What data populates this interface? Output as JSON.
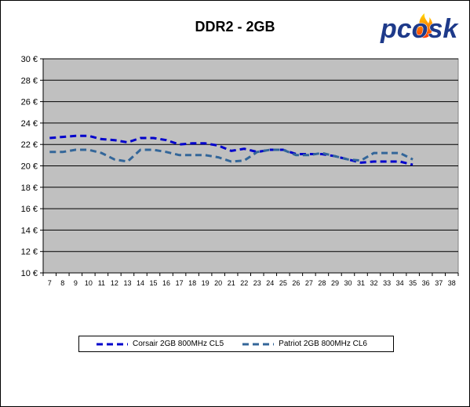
{
  "chart_data": {
    "type": "line",
    "title": "DDR2 - 2GB",
    "xlabel": "",
    "ylabel": "",
    "x": [
      7,
      8,
      9,
      10,
      11,
      12,
      13,
      14,
      15,
      16,
      17,
      18,
      19,
      20,
      21,
      22,
      23,
      24,
      25,
      26,
      27,
      28,
      29,
      30,
      31,
      32,
      33,
      34,
      35,
      36,
      37,
      38
    ],
    "ylim": [
      10,
      30
    ],
    "yticks": [
      10,
      12,
      14,
      16,
      18,
      20,
      22,
      24,
      26,
      28,
      30
    ],
    "ytick_labels": [
      "10 €",
      "12 €",
      "14 €",
      "16 €",
      "18 €",
      "20 €",
      "22 €",
      "24 €",
      "26 €",
      "28 €",
      "30 €"
    ],
    "grid": true,
    "plot_background": "#c0c0c0",
    "legend_position": "bottom",
    "series": [
      {
        "name": "Corsair 2GB 800MHz CL5",
        "color": "#0000cc",
        "values": [
          22.6,
          22.7,
          22.8,
          22.8,
          22.5,
          22.4,
          22.2,
          22.6,
          22.6,
          22.4,
          22.0,
          22.1,
          22.1,
          21.9,
          21.4,
          21.6,
          21.3,
          21.5,
          21.5,
          21.1,
          21.1,
          21.1,
          20.9,
          20.6,
          20.3,
          20.4,
          20.4,
          20.4,
          20.1,
          null,
          null,
          null
        ]
      },
      {
        "name": "Patriot 2GB 800MHz CL6",
        "color": "#336699",
        "values": [
          21.3,
          21.3,
          21.5,
          21.5,
          21.2,
          20.6,
          20.4,
          21.5,
          21.5,
          21.3,
          21.0,
          21.0,
          21.0,
          20.8,
          20.4,
          20.5,
          21.3,
          21.5,
          21.5,
          21.0,
          21.0,
          21.2,
          20.9,
          20.6,
          20.5,
          21.2,
          21.2,
          21.2,
          20.6,
          null,
          null,
          null
        ]
      }
    ]
  },
  "logo": {
    "text": "pcosk",
    "color": "#1e3a8a"
  }
}
